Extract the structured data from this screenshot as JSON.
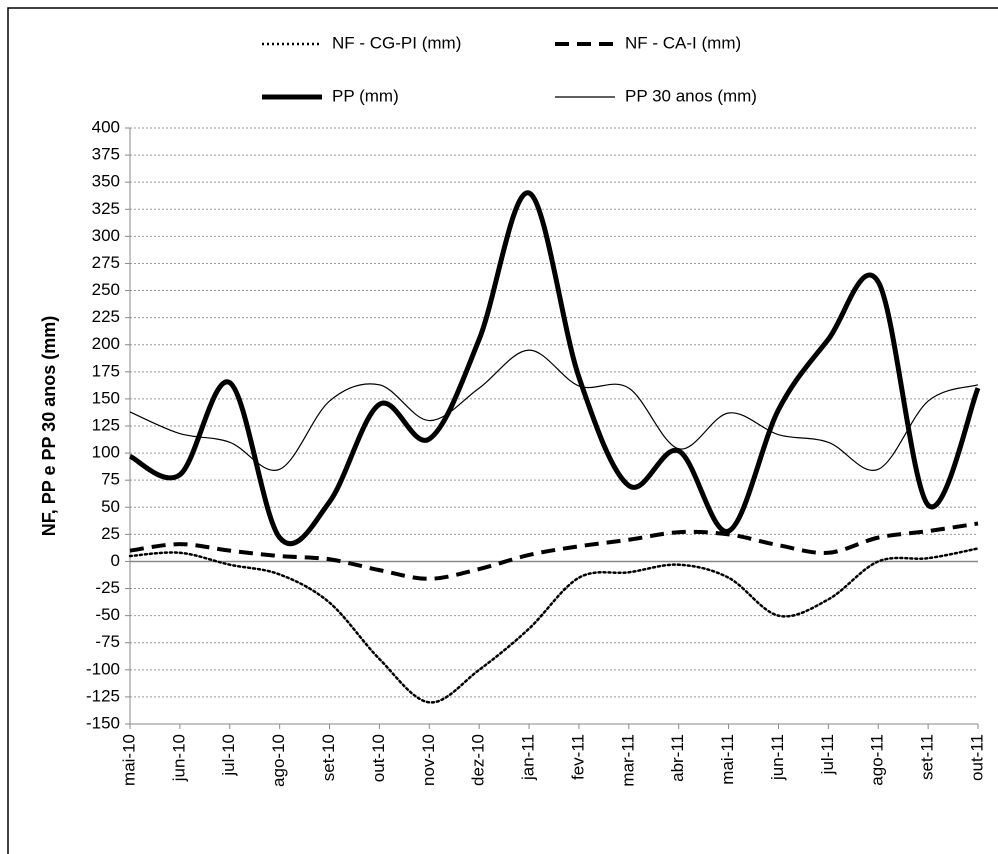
{
  "chart_data": {
    "type": "line",
    "y_label": "NF, PP e PP 30 anos (mm)",
    "categories": [
      "mai-10",
      "jun-10",
      "jul-10",
      "ago-10",
      "set-10",
      "out-10",
      "nov-10",
      "dez-10",
      "jan-11",
      "fev-11",
      "mar-11",
      "abr-11",
      "mai-11",
      "jun-11",
      "jul-11",
      "ago-11",
      "set-11",
      "out-11"
    ],
    "series": [
      {
        "name": "NF - CG-PI (mm)",
        "color": "#000000",
        "dash": "dotted",
        "line_width": 2.5,
        "values": [
          5,
          8,
          -3,
          -12,
          -38,
          -90,
          -130,
          -100,
          -62,
          -15,
          -10,
          -3,
          -15,
          -50,
          -35,
          0,
          3,
          12
        ]
      },
      {
        "name": "NF - CA-I (mm)",
        "color": "#000000",
        "dash": "dashed",
        "line_width": 4,
        "values": [
          10,
          16,
          10,
          5,
          2,
          -8,
          -16,
          -7,
          6,
          14,
          20,
          27,
          25,
          15,
          8,
          22,
          28,
          35
        ]
      },
      {
        "name": "PP (mm)",
        "color": "#000000",
        "dash": "solid",
        "line_width": 5,
        "values": [
          97,
          80,
          165,
          22,
          55,
          145,
          113,
          205,
          340,
          170,
          70,
          102,
          28,
          140,
          205,
          258,
          52,
          160
        ]
      },
      {
        "name": "PP 30 anos (mm)",
        "color": "#000000",
        "dash": "solid",
        "line_width": 1.2,
        "values": [
          138,
          118,
          110,
          85,
          148,
          163,
          130,
          160,
          195,
          162,
          160,
          104,
          137,
          117,
          110,
          85,
          148,
          163
        ]
      }
    ],
    "ylim": [
      -150,
      400
    ],
    "yticks": [
      -150,
      -125,
      -100,
      -75,
      -50,
      -25,
      0,
      25,
      50,
      75,
      100,
      125,
      150,
      175,
      200,
      225,
      250,
      275,
      300,
      325,
      350,
      375,
      400
    ],
    "grid": true
  }
}
